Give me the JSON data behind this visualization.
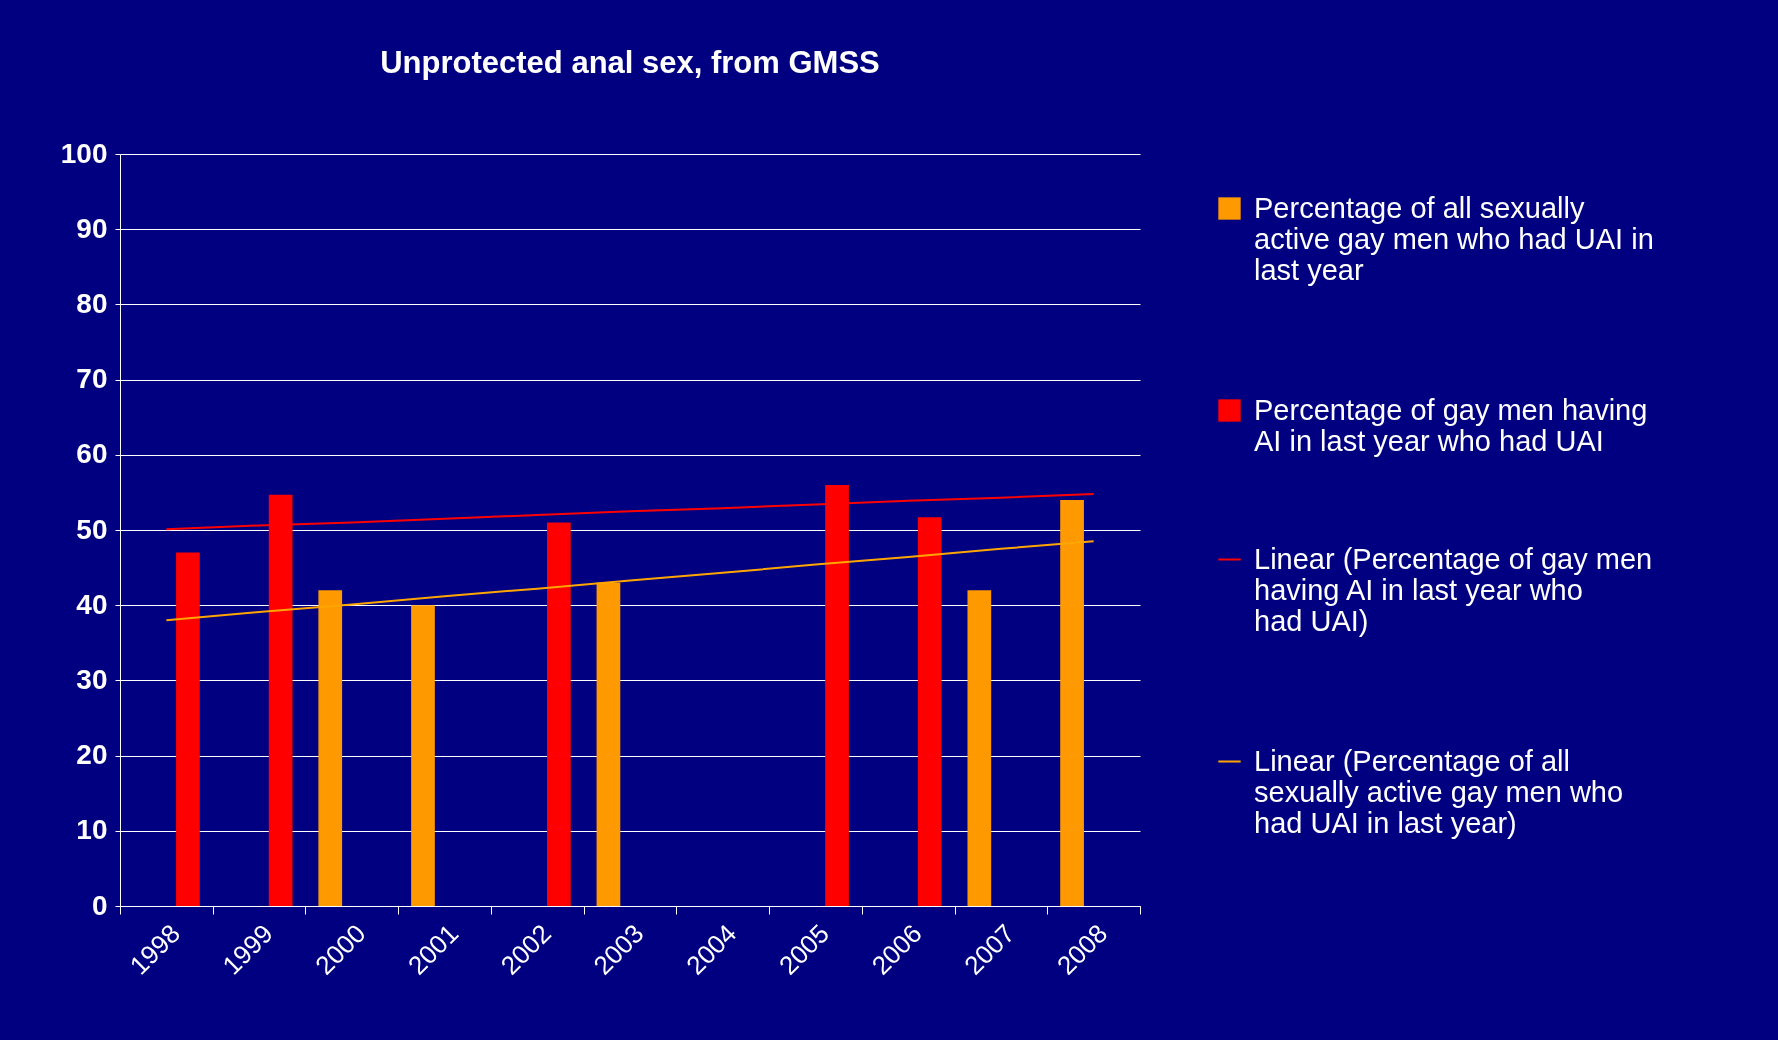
{
  "chart_data": {
    "type": "bar",
    "title": "Unprotected anal sex, from GMSS",
    "categories": [
      "1998",
      "1999",
      "2000",
      "2001",
      "2002",
      "2003",
      "2004",
      "2005",
      "2006",
      "2007",
      "2008"
    ],
    "series": [
      {
        "name": "Percentage of all sexually active gay men who had UAI in last year",
        "color": "#ff9900",
        "values": [
          null,
          null,
          42,
          40,
          null,
          43,
          null,
          null,
          null,
          42,
          54
        ]
      },
      {
        "name": "Percentage of gay men having AI in last year who had UAI",
        "color": "#ff0000",
        "values": [
          47,
          54.7,
          null,
          null,
          51,
          null,
          null,
          56,
          51.7,
          null,
          null
        ]
      },
      {
        "name": "Linear (Percentage of gay men having AI in last year who had UAI)",
        "type": "line",
        "color": "#ff0000",
        "values": [
          50.1,
          50.6,
          51.0,
          51.5,
          52.0,
          52.5,
          52.9,
          53.4,
          53.9,
          54.3,
          54.8
        ]
      },
      {
        "name": "Linear (Percentage of all sexually active gay men who had UAI in last year)",
        "type": "line",
        "color": "#ffa500",
        "values": [
          38,
          39.1,
          40.1,
          41.2,
          42.2,
          43.3,
          44.3,
          45.4,
          46.4,
          47.5,
          48.5
        ]
      }
    ],
    "ylim": [
      0,
      100
    ],
    "yticks": [
      0,
      10,
      20,
      30,
      40,
      50,
      60,
      70,
      80,
      90,
      100
    ],
    "grid": "y",
    "legend": "right"
  }
}
